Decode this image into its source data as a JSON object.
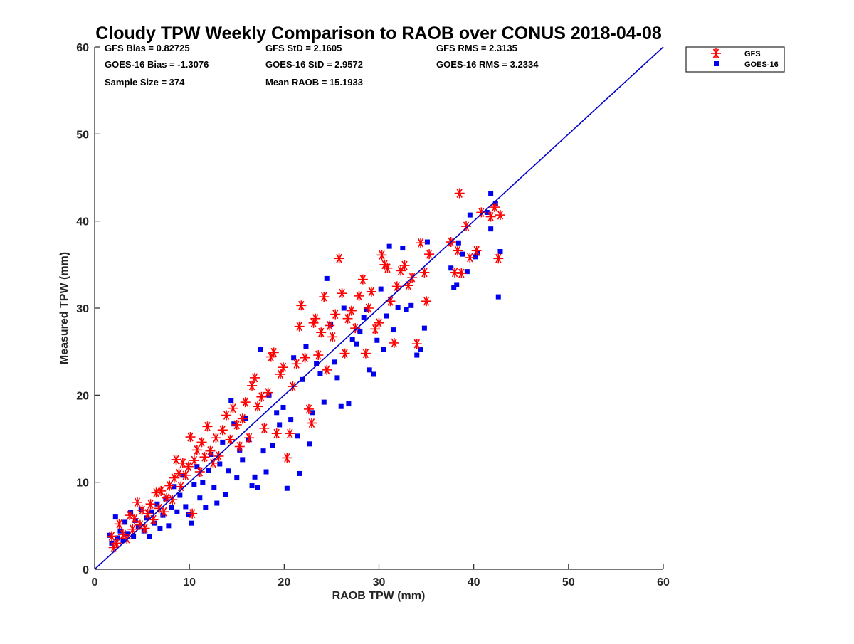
{
  "chart_data": {
    "type": "scatter",
    "title": "Cloudy TPW Weekly Comparison to RAOB over CONUS 2018-04-08",
    "xlabel": "RAOB TPW (mm)",
    "ylabel": "Measured TPW (mm)",
    "xlim": [
      0,
      60
    ],
    "ylim": [
      0,
      60
    ],
    "xticks": [
      "0",
      "10",
      "20",
      "30",
      "40",
      "50",
      "60"
    ],
    "yticks": [
      "0",
      "10",
      "20",
      "30",
      "40",
      "50",
      "60"
    ],
    "grid": false,
    "legend_position": "top-right (outside plot)",
    "reference_line": {
      "x": [
        0,
        60
      ],
      "y": [
        0,
        60
      ],
      "color": "#0000cc"
    },
    "stats": [
      {
        "text": "GFS Bias = 0.82725"
      },
      {
        "text": "GFS StD = 2.1605"
      },
      {
        "text": "GFS RMS = 2.3135"
      },
      {
        "text": "GOES-16 Bias = -1.3076"
      },
      {
        "text": "GOES-16 StD = 2.9572"
      },
      {
        "text": "GOES-16 RMS = 3.2334"
      },
      {
        "text": "Sample Size = 374"
      },
      {
        "text": "Mean RAOB = 15.1933"
      }
    ],
    "series": [
      {
        "name": "GFS",
        "marker": "asterisk",
        "color": "#ff0000",
        "points": [
          [
            1.8,
            3.8
          ],
          [
            2.0,
            2.5
          ],
          [
            2.3,
            3.0
          ],
          [
            2.6,
            5.2
          ],
          [
            3.0,
            4.0
          ],
          [
            3.4,
            3.5
          ],
          [
            3.7,
            6.2
          ],
          [
            4.0,
            4.6
          ],
          [
            4.2,
            5.8
          ],
          [
            4.5,
            7.7
          ],
          [
            4.8,
            5.1
          ],
          [
            5.0,
            6.8
          ],
          [
            5.3,
            4.7
          ],
          [
            5.6,
            6.4
          ],
          [
            5.9,
            7.5
          ],
          [
            6.2,
            5.7
          ],
          [
            6.5,
            8.8
          ],
          [
            6.8,
            7.0
          ],
          [
            7.0,
            9.0
          ],
          [
            7.3,
            6.6
          ],
          [
            7.6,
            8.2
          ],
          [
            7.9,
            9.6
          ],
          [
            8.2,
            8.0
          ],
          [
            8.4,
            10.5
          ],
          [
            8.6,
            12.6
          ],
          [
            8.9,
            11.0
          ],
          [
            9.1,
            9.5
          ],
          [
            9.3,
            12.2
          ],
          [
            9.6,
            10.8
          ],
          [
            9.9,
            11.8
          ],
          [
            10.1,
            15.2
          ],
          [
            10.3,
            6.4
          ],
          [
            10.5,
            12.5
          ],
          [
            10.8,
            13.7
          ],
          [
            11.1,
            11.2
          ],
          [
            11.3,
            14.6
          ],
          [
            11.6,
            12.9
          ],
          [
            11.9,
            16.4
          ],
          [
            12.2,
            13.6
          ],
          [
            12.5,
            12.2
          ],
          [
            12.8,
            15.1
          ],
          [
            13.1,
            13.0
          ],
          [
            13.5,
            16.0
          ],
          [
            13.9,
            17.7
          ],
          [
            14.3,
            14.9
          ],
          [
            14.6,
            18.5
          ],
          [
            15.0,
            16.6
          ],
          [
            15.3,
            14.1
          ],
          [
            15.6,
            17.3
          ],
          [
            15.9,
            19.2
          ],
          [
            16.3,
            15.1
          ],
          [
            16.6,
            21.1
          ],
          [
            16.9,
            22.0
          ],
          [
            17.2,
            18.7
          ],
          [
            17.6,
            19.8
          ],
          [
            17.9,
            16.2
          ],
          [
            18.3,
            20.3
          ],
          [
            18.6,
            24.4
          ],
          [
            18.9,
            24.9
          ],
          [
            19.2,
            15.6
          ],
          [
            19.6,
            22.4
          ],
          [
            19.9,
            23.2
          ],
          [
            20.3,
            12.8
          ],
          [
            20.6,
            15.6
          ],
          [
            20.9,
            21.0
          ],
          [
            21.3,
            23.6
          ],
          [
            21.6,
            27.9
          ],
          [
            21.8,
            30.3
          ],
          [
            22.2,
            24.3
          ],
          [
            22.6,
            18.4
          ],
          [
            22.9,
            16.8
          ],
          [
            23.1,
            28.3
          ],
          [
            23.3,
            28.8
          ],
          [
            23.6,
            24.6
          ],
          [
            23.9,
            27.2
          ],
          [
            24.2,
            31.3
          ],
          [
            24.5,
            22.9
          ],
          [
            24.8,
            28.0
          ],
          [
            25.1,
            26.7
          ],
          [
            25.4,
            29.3
          ],
          [
            25.8,
            35.7
          ],
          [
            26.1,
            31.7
          ],
          [
            26.4,
            24.8
          ],
          [
            26.7,
            28.8
          ],
          [
            27.1,
            29.7
          ],
          [
            27.5,
            27.7
          ],
          [
            27.9,
            31.4
          ],
          [
            28.3,
            33.3
          ],
          [
            28.6,
            24.8
          ],
          [
            28.9,
            30.0
          ],
          [
            29.2,
            31.9
          ],
          [
            29.6,
            27.6
          ],
          [
            30.0,
            28.3
          ],
          [
            30.3,
            36.1
          ],
          [
            30.6,
            35.0
          ],
          [
            30.9,
            34.6
          ],
          [
            31.2,
            30.8
          ],
          [
            31.6,
            26.0
          ],
          [
            31.9,
            32.5
          ],
          [
            32.3,
            34.3
          ],
          [
            32.7,
            34.9
          ],
          [
            33.1,
            32.6
          ],
          [
            33.5,
            33.5
          ],
          [
            34.0,
            25.9
          ],
          [
            34.4,
            37.5
          ],
          [
            34.8,
            34.1
          ],
          [
            35.0,
            30.8
          ],
          [
            35.3,
            36.2
          ],
          [
            37.6,
            37.6
          ],
          [
            38.0,
            34.1
          ],
          [
            38.3,
            36.6
          ],
          [
            38.5,
            43.2
          ],
          [
            38.7,
            34.0
          ],
          [
            39.2,
            39.4
          ],
          [
            39.6,
            35.8
          ],
          [
            40.3,
            36.6
          ],
          [
            40.8,
            41.0
          ],
          [
            41.8,
            40.5
          ],
          [
            42.2,
            41.6
          ],
          [
            42.8,
            40.7
          ],
          [
            42.6,
            35.7
          ]
        ]
      },
      {
        "name": "GOES-16",
        "marker": "square",
        "color": "#0000ee",
        "points": [
          [
            1.6,
            3.9
          ],
          [
            1.8,
            3.0
          ],
          [
            2.2,
            6.0
          ],
          [
            2.4,
            3.6
          ],
          [
            2.7,
            4.4
          ],
          [
            3.0,
            3.3
          ],
          [
            3.2,
            5.4
          ],
          [
            3.5,
            4.1
          ],
          [
            3.8,
            6.5
          ],
          [
            4.1,
            3.8
          ],
          [
            4.3,
            5.6
          ],
          [
            4.6,
            4.9
          ],
          [
            4.9,
            6.9
          ],
          [
            5.2,
            4.4
          ],
          [
            5.5,
            5.9
          ],
          [
            5.8,
            3.8
          ],
          [
            6.0,
            6.6
          ],
          [
            6.3,
            5.3
          ],
          [
            6.6,
            7.5
          ],
          [
            6.9,
            4.7
          ],
          [
            7.2,
            6.2
          ],
          [
            7.5,
            8.1
          ],
          [
            7.8,
            5.0
          ],
          [
            8.1,
            7.1
          ],
          [
            8.4,
            9.5
          ],
          [
            8.7,
            6.6
          ],
          [
            9.0,
            8.5
          ],
          [
            9.3,
            10.8
          ],
          [
            9.6,
            7.2
          ],
          [
            9.9,
            6.3
          ],
          [
            10.2,
            5.3
          ],
          [
            10.5,
            9.7
          ],
          [
            10.8,
            11.8
          ],
          [
            11.1,
            8.2
          ],
          [
            11.4,
            10.0
          ],
          [
            11.7,
            7.1
          ],
          [
            12.0,
            11.4
          ],
          [
            12.3,
            13.2
          ],
          [
            12.6,
            9.4
          ],
          [
            12.9,
            7.6
          ],
          [
            13.2,
            12.1
          ],
          [
            13.5,
            14.6
          ],
          [
            13.8,
            8.6
          ],
          [
            14.1,
            11.3
          ],
          [
            14.4,
            19.4
          ],
          [
            14.7,
            16.7
          ],
          [
            15.0,
            10.5
          ],
          [
            15.3,
            13.7
          ],
          [
            15.6,
            12.6
          ],
          [
            15.9,
            17.3
          ],
          [
            16.2,
            14.9
          ],
          [
            16.6,
            9.6
          ],
          [
            16.9,
            10.6
          ],
          [
            17.2,
            9.4
          ],
          [
            17.5,
            25.3
          ],
          [
            17.8,
            13.6
          ],
          [
            18.1,
            11.2
          ],
          [
            18.4,
            20.0
          ],
          [
            18.8,
            14.2
          ],
          [
            19.2,
            18.0
          ],
          [
            19.5,
            16.6
          ],
          [
            19.9,
            18.6
          ],
          [
            20.3,
            9.3
          ],
          [
            20.7,
            17.2
          ],
          [
            21.0,
            24.3
          ],
          [
            21.4,
            15.3
          ],
          [
            21.6,
            11.0
          ],
          [
            21.9,
            21.8
          ],
          [
            22.3,
            25.6
          ],
          [
            22.7,
            14.4
          ],
          [
            23.0,
            18.0
          ],
          [
            23.4,
            23.6
          ],
          [
            23.8,
            22.5
          ],
          [
            24.2,
            19.2
          ],
          [
            24.5,
            33.4
          ],
          [
            24.9,
            28.1
          ],
          [
            25.3,
            23.8
          ],
          [
            25.6,
            22.0
          ],
          [
            26.0,
            18.7
          ],
          [
            26.3,
            30.0
          ],
          [
            26.8,
            19.0
          ],
          [
            27.2,
            26.4
          ],
          [
            27.6,
            25.9
          ],
          [
            28.0,
            27.3
          ],
          [
            28.4,
            28.9
          ],
          [
            28.7,
            29.8
          ],
          [
            29.0,
            22.9
          ],
          [
            29.4,
            22.4
          ],
          [
            29.8,
            26.3
          ],
          [
            30.2,
            32.2
          ],
          [
            30.5,
            25.3
          ],
          [
            30.8,
            29.1
          ],
          [
            31.1,
            37.1
          ],
          [
            31.5,
            27.5
          ],
          [
            32.0,
            30.1
          ],
          [
            32.5,
            36.9
          ],
          [
            32.9,
            29.8
          ],
          [
            33.4,
            30.3
          ],
          [
            34.0,
            24.6
          ],
          [
            34.4,
            25.3
          ],
          [
            34.8,
            27.7
          ],
          [
            35.1,
            37.6
          ],
          [
            37.6,
            34.6
          ],
          [
            37.9,
            32.4
          ],
          [
            38.2,
            32.7
          ],
          [
            38.4,
            37.5
          ],
          [
            38.8,
            36.2
          ],
          [
            39.3,
            34.2
          ],
          [
            39.6,
            40.7
          ],
          [
            40.2,
            35.9
          ],
          [
            40.4,
            36.3
          ],
          [
            41.8,
            43.2
          ],
          [
            41.8,
            39.1
          ],
          [
            42.3,
            42.0
          ],
          [
            42.8,
            36.5
          ],
          [
            42.6,
            31.3
          ],
          [
            41.4,
            41.0
          ]
        ]
      }
    ]
  },
  "colors": {
    "gfs": "#ff0000",
    "goes16": "#0000ee",
    "reference_line": "#0000cc",
    "axes": "#262626"
  }
}
